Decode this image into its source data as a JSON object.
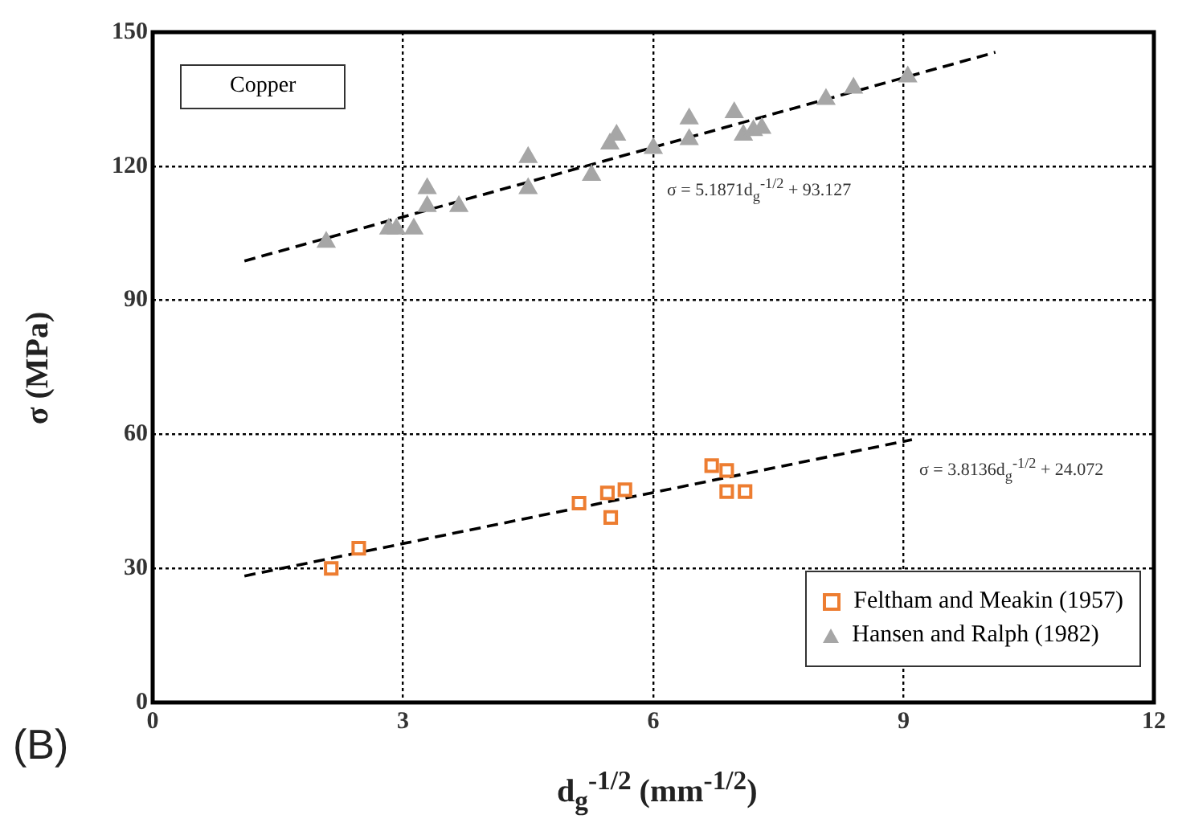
{
  "chart_data": {
    "type": "scatter",
    "xlabel": "d$_{g}$$^{-1/2}$ (mm$^{-1/2}$)",
    "ylabel": "σ (MPa)",
    "xlim": [
      0,
      12
    ],
    "xticks": [
      0,
      3,
      6,
      9,
      12
    ],
    "ylim": [
      0,
      150
    ],
    "yticks": [
      0,
      30,
      60,
      90,
      120,
      150
    ],
    "grid": true,
    "legend": "bottom right",
    "series": [
      {
        "name": "Feltham and Meakin (1957)",
        "color": "#ed7d31",
        "marker": "square",
        "x": [
          2.14,
          2.47,
          5.11,
          5.45,
          5.66,
          5.49,
          6.7,
          6.88,
          6.88,
          7.1
        ],
        "values": [
          30,
          34.5,
          44.6,
          46.9,
          47.6,
          41.4,
          53,
          51.9,
          47.2,
          47.2
        ]
      },
      {
        "name": "Hansen and Ralph (1982)",
        "color": "#a6a6a6",
        "marker": "triangle",
        "x": [
          2.08,
          2.83,
          2.92,
          3.13,
          3.29,
          3.29,
          3.67,
          4.5,
          4.5,
          5.26,
          5.48,
          5.56,
          6.0,
          6.43,
          6.43,
          6.97,
          7.08,
          7.2,
          7.3,
          8.07,
          8.4,
          9.05
        ],
        "values": [
          103,
          106,
          106,
          106,
          115,
          111,
          111,
          122,
          115,
          118,
          125,
          127,
          124,
          130.6,
          126,
          132,
          127,
          128,
          128.5,
          135,
          137.5,
          140
        ]
      },
      {
        "type": "line",
        "color": "#000000",
        "line_style": "dashed",
        "marker": "none",
        "x": [
          1.1,
          9.1
        ],
        "values": [
          28.3,
          58.8
        ]
      },
      {
        "type": "line",
        "color": "#000000",
        "line_style": "dashed",
        "marker": "none",
        "x": [
          1.1,
          10.1
        ],
        "values": [
          98.8,
          145.5
        ]
      }
    ],
    "annotations": [
      "Copper",
      "(B)",
      "σ = 5.1871d$_{g}$$^{-1/2}$ + 93.127",
      "σ = 3.8136d$_{g}$$^{-1/2}$ + 24.072"
    ]
  }
}
